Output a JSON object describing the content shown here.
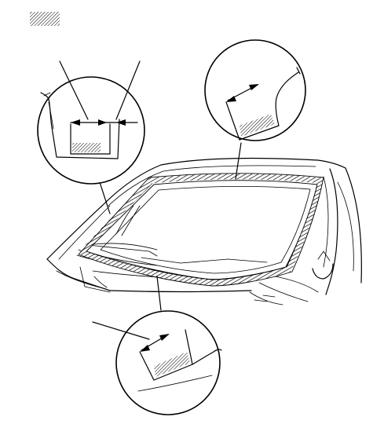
{
  "diagram": {
    "legend_symbol": "hatched-area-symbol",
    "colors": {
      "line": "#000000",
      "background": "#ffffff"
    }
  }
}
